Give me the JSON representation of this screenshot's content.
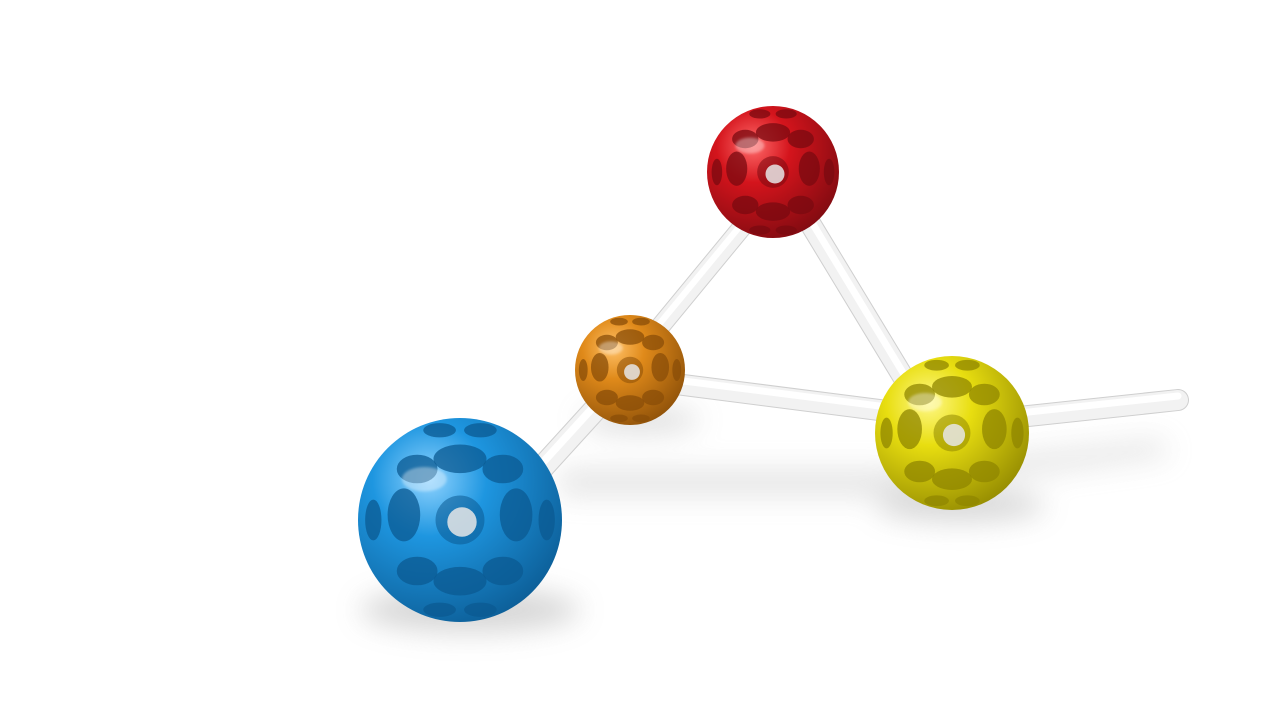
{
  "scene": {
    "background": "#ffffff",
    "rod_color": "#f2f2f2",
    "balls": [
      {
        "name": "red-ball",
        "color": "#d4141c",
        "dark": "#7a0a10",
        "light": "#ff6a6a"
      },
      {
        "name": "orange-ball",
        "color": "#e08a1a",
        "dark": "#8a4e08",
        "light": "#ffc066"
      },
      {
        "name": "blue-ball",
        "color": "#1e96e0",
        "dark": "#0b5a92",
        "light": "#8fd3ff"
      },
      {
        "name": "yellow-ball",
        "color": "#e8de10",
        "dark": "#8f8600",
        "light": "#fff888"
      }
    ]
  }
}
